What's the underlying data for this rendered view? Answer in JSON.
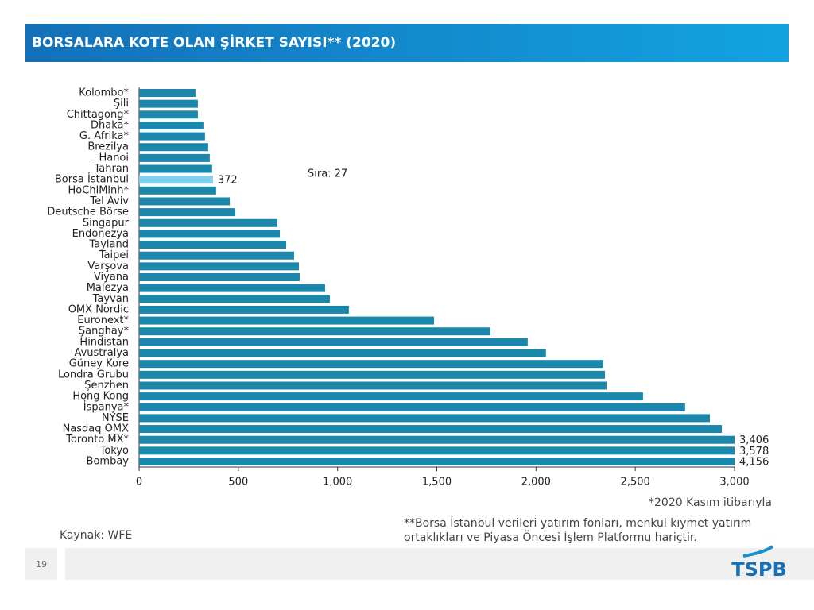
{
  "header": {
    "title": "BORSALARA KOTE OLAN ŞİRKET SAYISI** (2020)"
  },
  "chart_data": {
    "type": "hbar",
    "categories": [
      "Kolombo*",
      "Şili",
      "Chittagong*",
      "Dhaka*",
      "G. Afrika*",
      "Brezilya",
      "Hanoi",
      "Tahran",
      "Borsa İstanbul",
      "HoChiMinh*",
      "Tel Aviv",
      "Deutsche Börse",
      "Singapur",
      "Endonezya",
      "Tayland",
      "Taipei",
      "Varşova",
      "Viyana",
      "Malezya",
      "Tayvan",
      "OMX Nordic",
      "Euronext*",
      "Şanghay*",
      "Hindistan",
      "Avustralya",
      "Güney Kore",
      "Londra Grubu",
      "Şenzhen",
      "Hong Kong",
      "İspanya*",
      "NYSE",
      "Nasdaq OMX",
      "Toronto MX*",
      "Tokyo",
      "Bombay"
    ],
    "values": [
      284,
      296,
      296,
      324,
      332,
      348,
      356,
      368,
      372,
      388,
      457,
      485,
      697,
      709,
      741,
      781,
      805,
      809,
      937,
      961,
      1057,
      1486,
      1770,
      1958,
      2050,
      2339,
      2347,
      2355,
      2539,
      2751,
      2876,
      2936,
      3406,
      3578,
      4156
    ],
    "value_labels": [
      null,
      null,
      null,
      null,
      null,
      null,
      null,
      null,
      "372",
      null,
      null,
      null,
      null,
      null,
      null,
      null,
      null,
      null,
      null,
      null,
      null,
      null,
      null,
      null,
      null,
      null,
      null,
      null,
      null,
      null,
      null,
      null,
      "3,406",
      "3,578",
      "4,156"
    ],
    "color": "#1b87aa",
    "highlight_category": "Borsa İstanbul",
    "highlight_color": "#7fd1ef",
    "xlim": [
      0,
      3000
    ],
    "xticks": [
      0,
      500,
      {
        "value": 1000,
        "label": "1,000"
      },
      {
        "value": 1500,
        "label": "1,500"
      },
      {
        "value": 2000,
        "label": "2,000"
      },
      {
        "value": 2500,
        "label": "2,500"
      },
      {
        "value": 3000,
        "label": "3,000"
      }
    ],
    "annotation": "Sıra: 27"
  },
  "footnotes": [
    "*2020 Kasım itibarıyla",
    "**Borsa İstanbul verileri yatırım fonları, menkul kıymet yatırım ortaklıkları ve Piyasa Öncesi İşlem Platformu hariçtir."
  ],
  "source": "Kaynak: WFE",
  "page_number": "19",
  "logo": "TSPB"
}
